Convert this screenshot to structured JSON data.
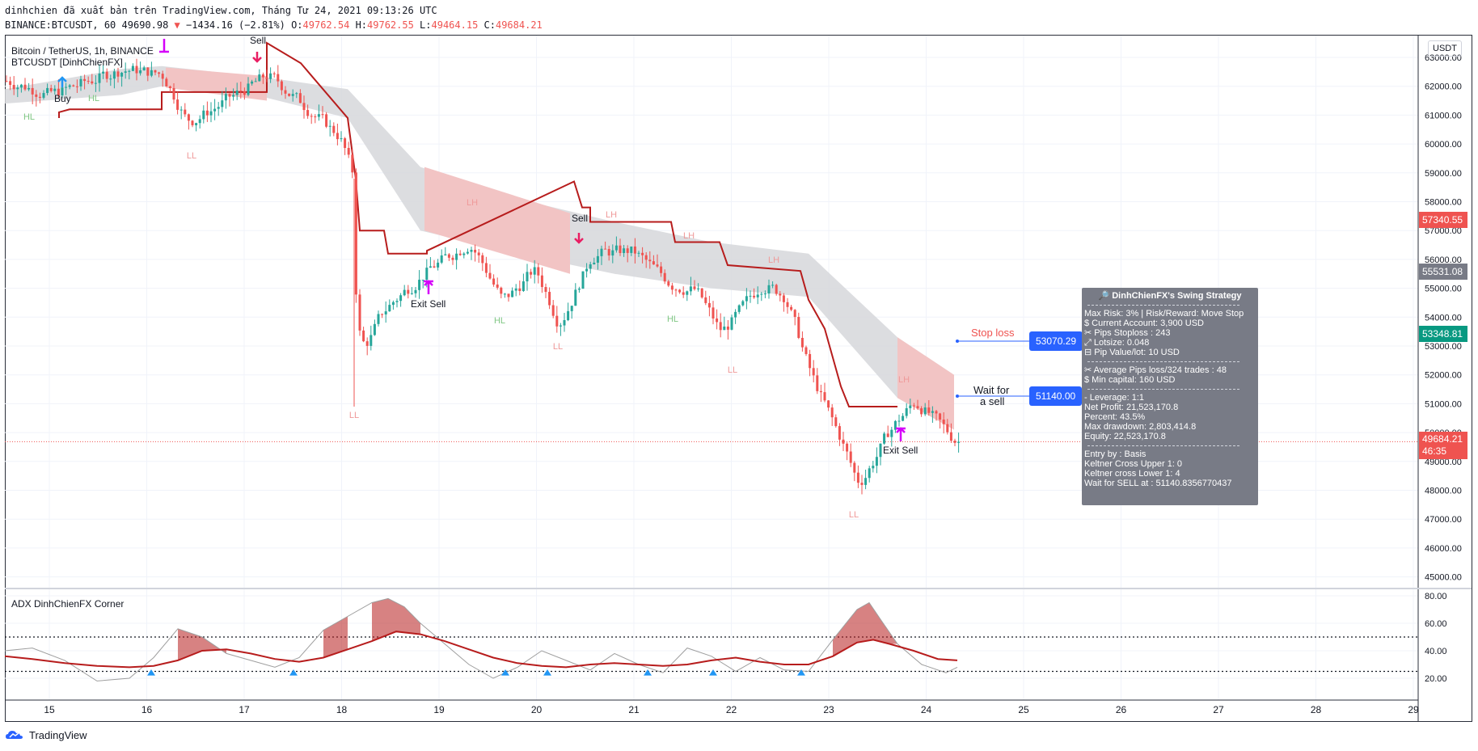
{
  "header": {
    "line1": "dinhchien đã xuất bản trên TradingView.com, Tháng Tư 24, 2021 09:13:26 UTC",
    "symbol": "BINANCE:BTCUSDT, 60",
    "last": "49690.98",
    "change": "−1434.16 (−2.81%)",
    "o_label": "O:",
    "o_val": "49762.54",
    "h_label": "H:",
    "h_val": "49762.55",
    "l_label": "L:",
    "l_val": "49464.15",
    "c_label": "C:",
    "c_val": "49684.21"
  },
  "legend": {
    "line1": "Bitcoin / TetherUS, 1h, BINANCE",
    "line2": "BTCUSDT [DinhChienFX]"
  },
  "adx_legend": "ADX DinhChienFX Corner",
  "currency_badge": "USDT",
  "price_axis": [
    "63000.00",
    "62000.00",
    "61000.00",
    "60000.00",
    "59000.00",
    "58000.00",
    "57000.00",
    "56000.00",
    "55000.00",
    "54000.00",
    "53000.00",
    "52000.00",
    "51000.00",
    "50000.00",
    "49000.00",
    "48000.00",
    "47000.00",
    "46000.00",
    "45000.00"
  ],
  "adx_axis": [
    "80.00",
    "60.00",
    "40.00",
    "20.00"
  ],
  "time_axis": [
    "15",
    "16",
    "17",
    "18",
    "19",
    "20",
    "21",
    "22",
    "23",
    "24",
    "25",
    "26",
    "27",
    "28",
    "29"
  ],
  "price_labels": {
    "p1": "57340.55",
    "p2": "55531.08",
    "p3": "53348.81",
    "last_price": "49684.21",
    "countdown": "46:35"
  },
  "tags": {
    "stop_loss_text": "Stop loss",
    "stop_loss_price": "53070.29",
    "wait_text_1": "Wait for",
    "wait_text_2": "a sell",
    "wait_price": "51140.00"
  },
  "signals": {
    "buy": "Buy",
    "sell1": "Sell",
    "sell2": "Sell",
    "exit_sell_1": "Exit Sell",
    "exit_sell_2": "Exit Sell",
    "hl": "HL",
    "ll": "LL",
    "lh": "LH"
  },
  "info": {
    "title": "🔎 DinhChienFX's Swing Strategy",
    "l1": "Max Risk: 3% | Risk/Reward: Move Stop",
    "l2": "$ Current Account: 3,900 USD",
    "l3": "✂ Pips Stoploss : 243",
    "l4": "⤢ Lotsize: 0.048",
    "l5": "⊟ Pip Value/lot: 10 USD",
    "l6": "✂ Average Pips loss/324 trades : 48",
    "l7": "$ Min capital: 160 USD",
    "l8": "- Leverage: 1:1",
    "l9": "Net Profit: 21,523,170.8",
    "l10": "Percent: 43.5%",
    "l11": "Max drawdown: 2,803,414.8",
    "l12": "Equity: 22,523,170.8",
    "l13": "Entry by : Basis",
    "l14": "Keltner Cross Upper 1: 0",
    "l15": "Keltner cross Lower 1: 4",
    "l16": "Wait for SELL at : 51140.8356770437"
  },
  "footer": "TradingView",
  "colors": {
    "up": "#26a69a",
    "down": "#ef5350",
    "stop_line": "#b71c1c",
    "band_grey": "#d6d7da",
    "band_pink": "#f2c4c4",
    "tag_blue": "#2962ff",
    "info_bg": "#787b86"
  }
}
